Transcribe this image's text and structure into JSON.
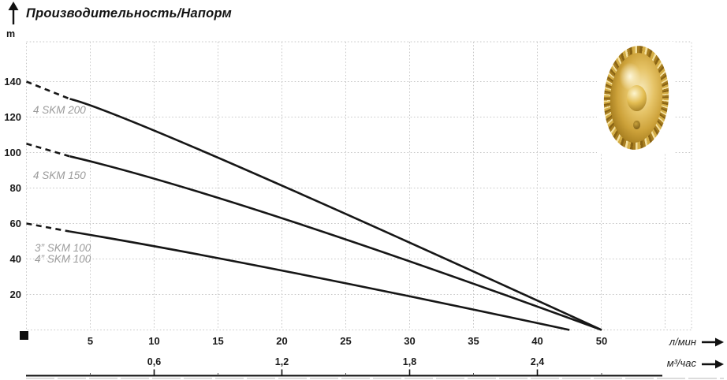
{
  "title": "Производительность/Напорм",
  "y_axis": {
    "unit_label": "m"
  },
  "x_axis": {
    "unit_primary": "л/мин",
    "unit_secondary": "м³/час"
  },
  "series_labels": [
    "4 SKM 200",
    "4 SKM 150",
    "3” SKM 100",
    "4” SKM 100"
  ],
  "colors": {
    "curve": "#161616",
    "grid": "#c7c7c7",
    "series_label": "#9b9b9b",
    "text": "#1a1a1a"
  },
  "chart_data": {
    "type": "line",
    "title": "Производительность/Напорм",
    "ylabel": "m",
    "xlabel_primary": "л/мин",
    "xlabel_secondary": "м³/час",
    "y_ticks": [
      140,
      120,
      100,
      80,
      60,
      40,
      20
    ],
    "x_ticks_primary": [
      5,
      10,
      15,
      20,
      25,
      30,
      35,
      40,
      50
    ],
    "x_ticks_secondary": [
      0.6,
      1.2,
      1.8,
      2.4
    ],
    "ylim": [
      0,
      160
    ],
    "xlim_primary": [
      0,
      52
    ],
    "grid": true,
    "legend_position": "inline-labels",
    "series": [
      {
        "name": "4 SKM 200",
        "points": [
          [
            0,
            140
          ],
          [
            16,
            94
          ],
          [
            50,
            0
          ]
        ],
        "dash_until": 3.4
      },
      {
        "name": "4 SKM 150",
        "points": [
          [
            0,
            105
          ],
          [
            20,
            63
          ],
          [
            50,
            0
          ]
        ],
        "dash_until": 3.4
      },
      {
        "name": "3”/4” SKM 100",
        "points": [
          [
            0,
            60
          ],
          [
            20,
            33.5
          ],
          [
            45,
            0
          ]
        ],
        "dash_until": 3.4
      }
    ]
  }
}
